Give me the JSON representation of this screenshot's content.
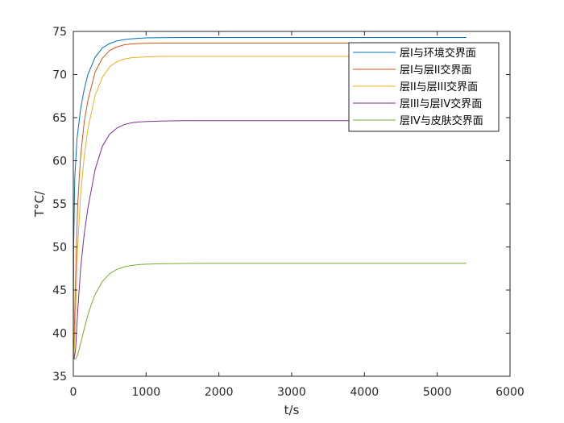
{
  "chart_data": {
    "type": "line",
    "xlabel": "t/s",
    "ylabel": "T°C/",
    "xlim": [
      0,
      6000
    ],
    "ylim": [
      35,
      75
    ],
    "xticks": [
      0,
      1000,
      2000,
      3000,
      4000,
      5000,
      6000
    ],
    "yticks": [
      35,
      40,
      45,
      50,
      55,
      60,
      65,
      70,
      75
    ],
    "grid": false,
    "legend_position": "top-right",
    "series": [
      {
        "name": "层I与环境交界面",
        "color": "#0072BD",
        "x": [
          0,
          5,
          20,
          50,
          100,
          150,
          200,
          300,
          400,
          500,
          600,
          700,
          800,
          900,
          1000,
          1200,
          1500,
          2000,
          3000,
          4000,
          5000,
          5400
        ],
        "y": [
          37,
          50,
          58,
          62.5,
          66,
          68.3,
          70,
          72,
          73.1,
          73.6,
          73.9,
          74.05,
          74.15,
          74.2,
          74.25,
          74.28,
          74.3,
          74.3,
          74.3,
          74.3,
          74.3,
          74.3
        ]
      },
      {
        "name": "层I与层II交界面",
        "color": "#D95319",
        "x": [
          0,
          10,
          30,
          60,
          100,
          150,
          200,
          300,
          400,
          500,
          600,
          700,
          800,
          900,
          1000,
          1200,
          1500,
          2000,
          3000,
          4000,
          5000,
          5400
        ],
        "y": [
          37,
          38.5,
          46,
          55,
          60.5,
          64.5,
          67,
          70.3,
          71.9,
          72.8,
          73.2,
          73.45,
          73.55,
          73.6,
          73.62,
          73.65,
          73.65,
          73.65,
          73.65,
          73.65,
          73.65,
          73.65
        ]
      },
      {
        "name": "层II与层III交界面",
        "color": "#EDB120",
        "x": [
          0,
          10,
          30,
          60,
          100,
          150,
          200,
          300,
          400,
          500,
          600,
          700,
          800,
          900,
          1000,
          1200,
          1500,
          2000,
          3000,
          4000,
          5000,
          5400
        ],
        "y": [
          37,
          37.2,
          42,
          50,
          56,
          60.5,
          63.7,
          67.6,
          69.7,
          70.9,
          71.5,
          71.8,
          71.95,
          72,
          72.05,
          72.1,
          72.1,
          72.1,
          72.1,
          72.1,
          72.1,
          72.1
        ]
      },
      {
        "name": "层III与层IV交界面",
        "color": "#7E2F8E",
        "x": [
          0,
          10,
          30,
          60,
          100,
          150,
          200,
          300,
          400,
          500,
          600,
          700,
          800,
          900,
          1000,
          1200,
          1500,
          2000,
          3000,
          4000,
          5000,
          5400
        ],
        "y": [
          37,
          37,
          38,
          42.5,
          47.5,
          51.5,
          54.5,
          59,
          61.7,
          63.1,
          63.8,
          64.2,
          64.4,
          64.5,
          64.55,
          64.6,
          64.65,
          64.65,
          64.65,
          64.65,
          64.65,
          64.65
        ]
      },
      {
        "name": "层IV与皮肤交界面",
        "color": "#77AC30",
        "x": [
          0,
          20,
          40,
          60,
          100,
          150,
          200,
          250,
          300,
          400,
          500,
          600,
          700,
          800,
          900,
          1000,
          1200,
          1500,
          2000,
          3000,
          4000,
          5000,
          5400
        ],
        "y": [
          37,
          37,
          37.1,
          37.5,
          38.8,
          40.5,
          42.1,
          43.4,
          44.5,
          46,
          46.9,
          47.4,
          47.7,
          47.85,
          47.95,
          48,
          48.05,
          48.08,
          48.1,
          48.1,
          48.1,
          48.1,
          48.1
        ]
      }
    ]
  }
}
